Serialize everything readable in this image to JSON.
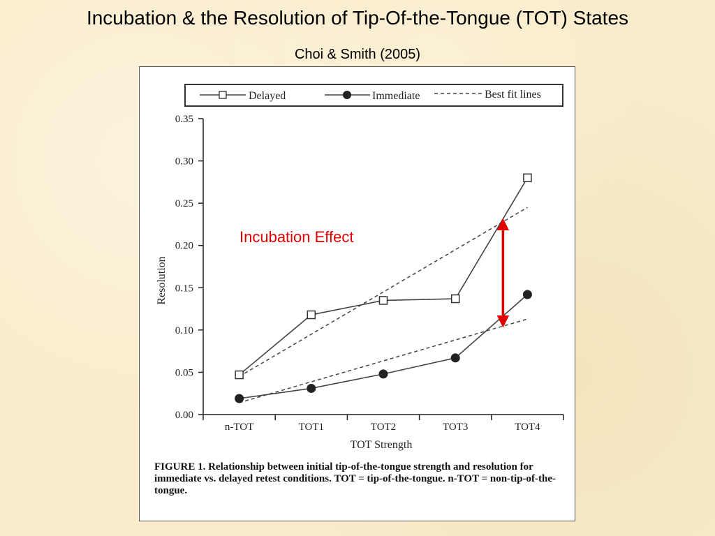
{
  "slide": {
    "title": "Incubation & the Resolution of Tip-Of-the-Tongue (TOT) States",
    "subtitle": "Choi & Smith (2005)"
  },
  "chart_data": {
    "type": "line",
    "categories": [
      "n-TOT",
      "TOT1",
      "TOT2",
      "TOT3",
      "TOT4"
    ],
    "series": [
      {
        "name": "Delayed",
        "values": [
          0.047,
          0.118,
          0.135,
          0.137,
          0.28
        ],
        "marker": "open-square",
        "color": "#444444"
      },
      {
        "name": "Immediate",
        "values": [
          0.019,
          0.031,
          0.048,
          0.067,
          0.142
        ],
        "marker": "filled-circle",
        "color": "#444444"
      },
      {
        "name": "Best fit lines",
        "style": "dashed",
        "fits": [
          {
            "of": "Delayed",
            "values": [
              0.045,
              0.095,
              0.145,
              0.195,
              0.245
            ]
          },
          {
            "of": "Immediate",
            "values": [
              0.014,
              0.039,
              0.064,
              0.089,
              0.113
            ]
          }
        ]
      }
    ],
    "xlabel": "TOT Strength",
    "ylabel": "Resolution",
    "ylim": [
      0,
      0.35
    ],
    "yticks": [
      "0.00",
      "0.05",
      "0.10",
      "0.15",
      "0.20",
      "0.25",
      "0.30",
      "0.35"
    ],
    "legend_position": "top",
    "grid": false,
    "annotation": {
      "text": "Incubation Effect",
      "color": "#e00000",
      "arrow_category": "TOT4",
      "arrow_range": [
        0.11,
        0.225
      ]
    },
    "caption": "FIGURE 1. Relationship between initial tip-of-the-tongue strength and resolution for immediate vs. delayed retest conditions. TOT = tip-of-the-tongue. n-TOT = non-tip-of-the-tongue."
  }
}
